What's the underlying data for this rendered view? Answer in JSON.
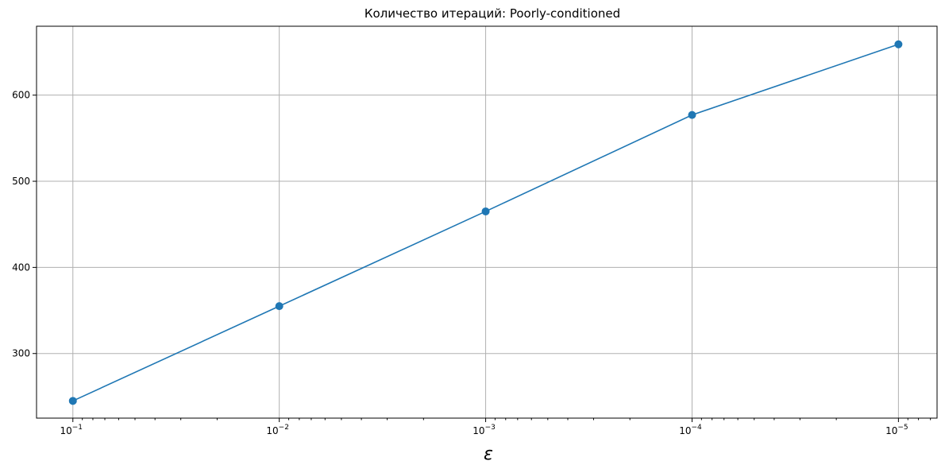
{
  "chart_data": {
    "type": "line",
    "title": "Количество итераций: Poorly-conditioned",
    "xlabel": "ε",
    "ylabel": "",
    "x_scale": "log",
    "x_inverted": true,
    "xlim": [
      0.15,
      6.5e-06
    ],
    "ylim": [
      225,
      680
    ],
    "grid": true,
    "x": [
      0.1,
      0.01,
      0.001,
      0.0001,
      1e-05
    ],
    "x_tick_labels": [
      {
        "value": 0.1,
        "base": "10",
        "exp": "−1"
      },
      {
        "value": 0.01,
        "base": "10",
        "exp": "−2"
      },
      {
        "value": 0.001,
        "base": "10",
        "exp": "−3"
      },
      {
        "value": 0.0001,
        "base": "10",
        "exp": "−4"
      },
      {
        "value": 1e-05,
        "base": "10",
        "exp": "−5"
      }
    ],
    "y_ticks": [
      300,
      400,
      500,
      600
    ],
    "series": [
      {
        "values": [
          245,
          355,
          465,
          577,
          659
        ],
        "color": "#1f77b4",
        "marker": "circle"
      }
    ]
  }
}
